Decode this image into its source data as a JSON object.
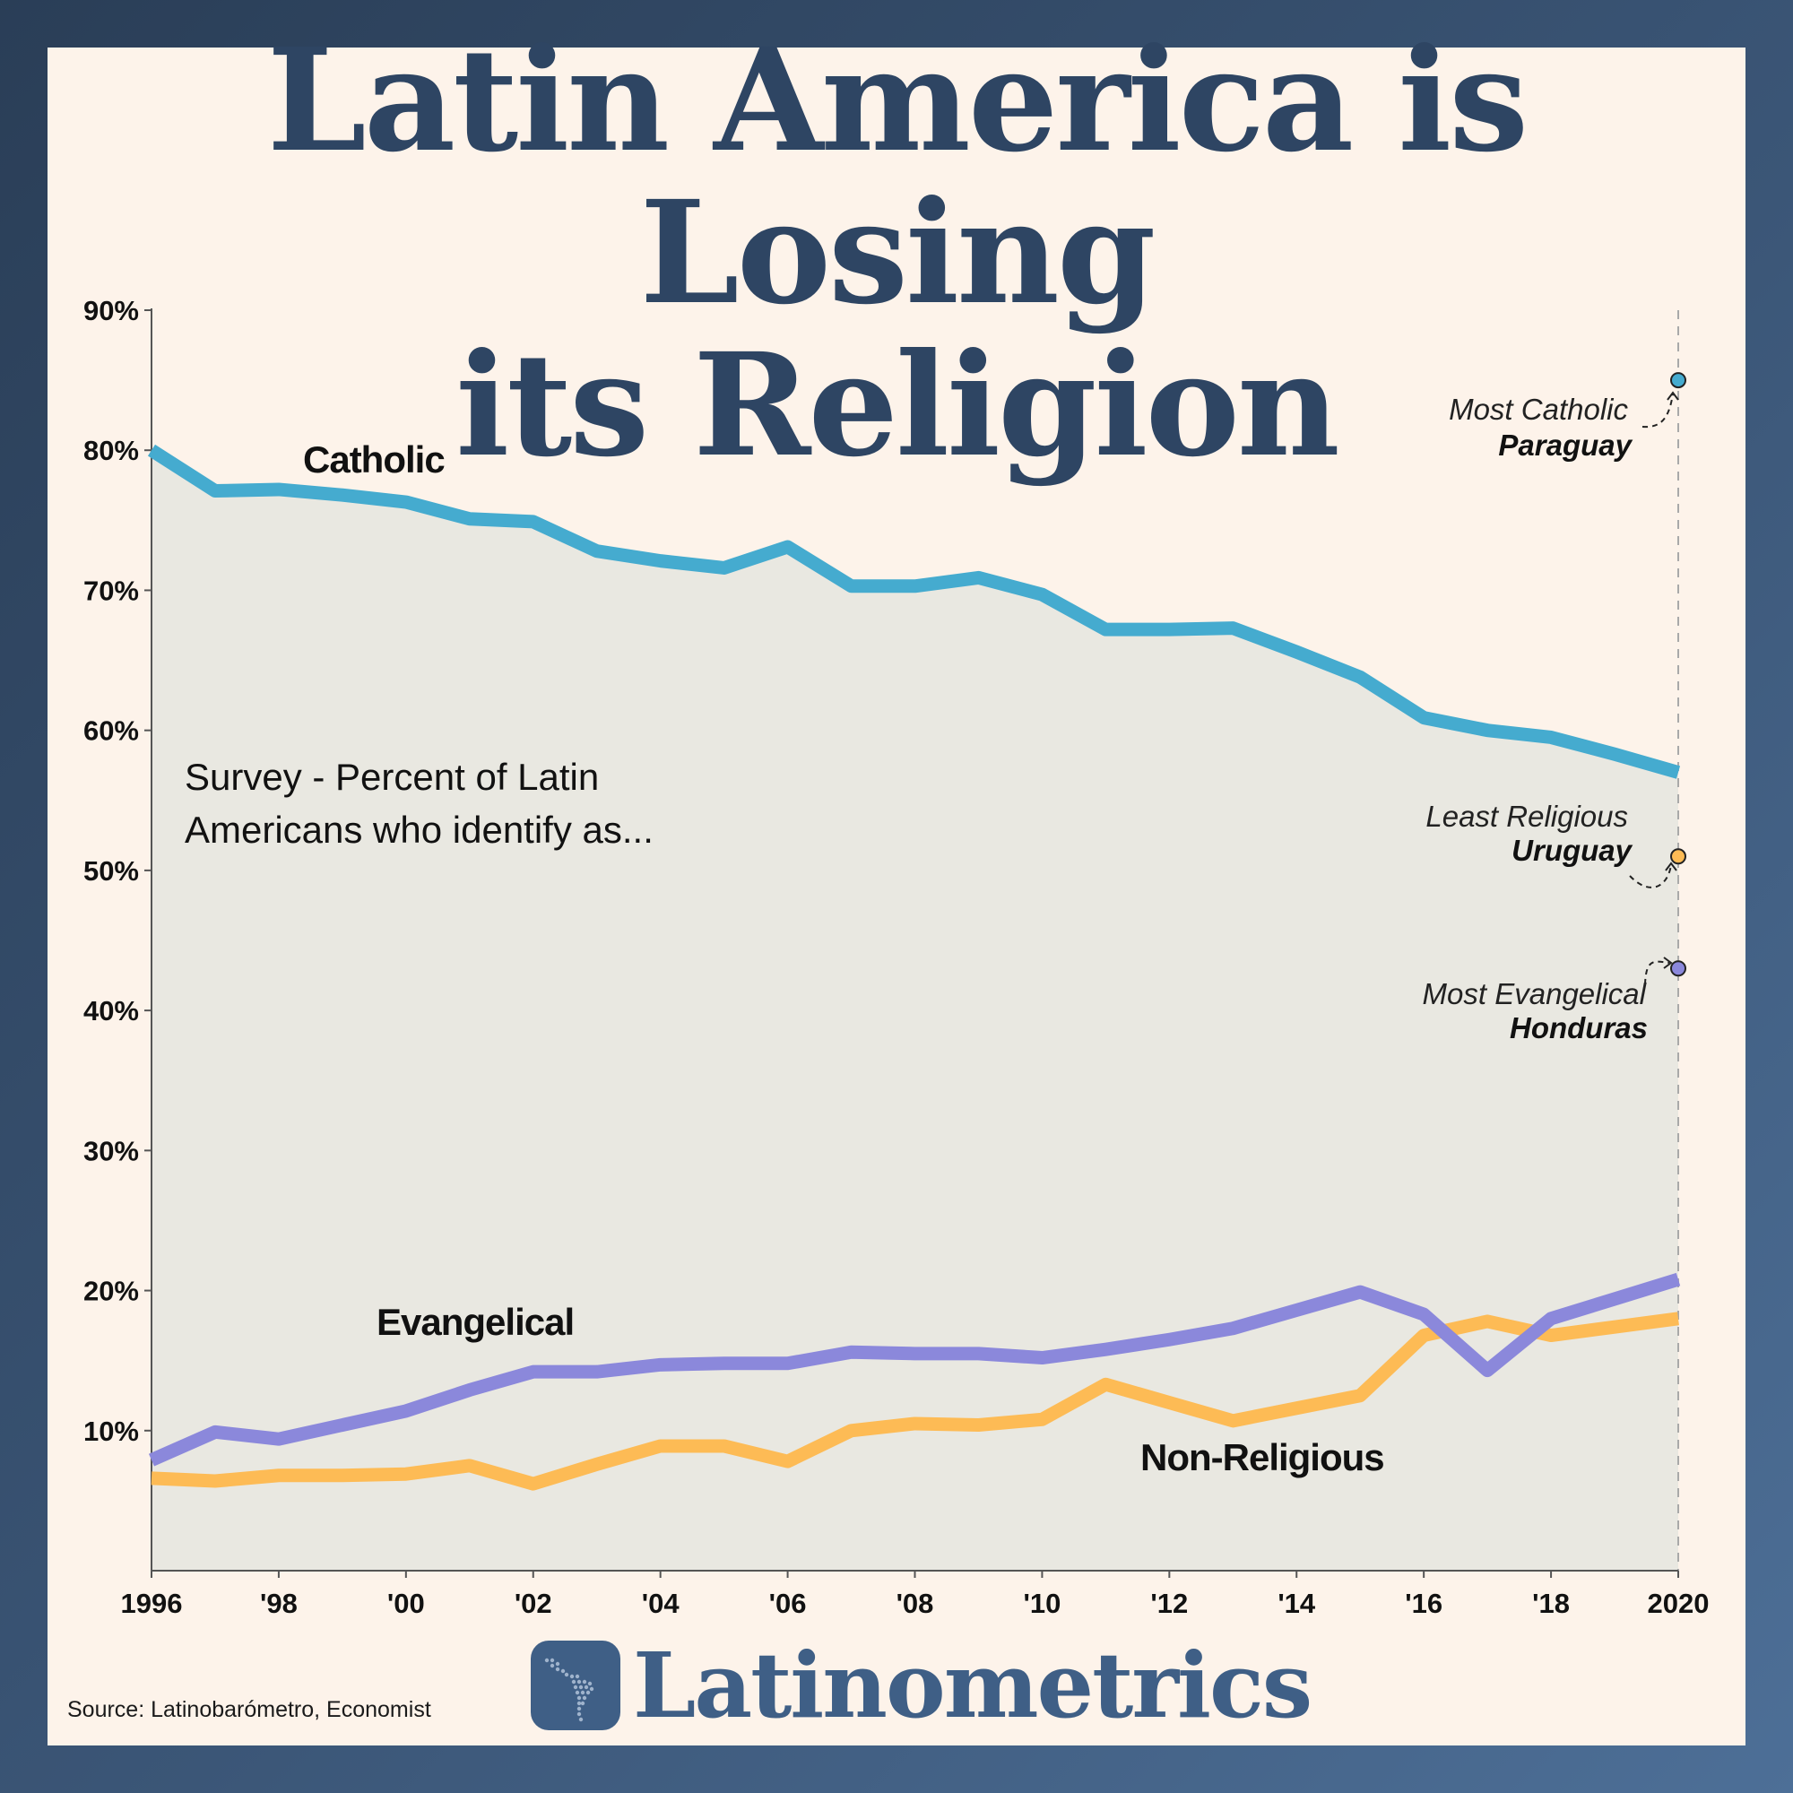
{
  "title": {
    "line1": "Latin America is Losing",
    "line2": "its Religion"
  },
  "subtitle": {
    "line1": "Survey - Percent of Latin",
    "line2": "Americans who identify as..."
  },
  "source": "Source: Latinobarómetro, Economist",
  "brand": {
    "name": "Latinometrics",
    "logo_icon": "latin-america-map-icon"
  },
  "colors": {
    "catholic": "#45abcf",
    "evangelical": "#8b88db",
    "non_religious": "#fdbb55",
    "area_fill": "#e9e8e1",
    "title": "#2e4563",
    "brand": "#3f5f86"
  },
  "chart_data": {
    "type": "line",
    "x": [
      1996,
      1997,
      1998,
      1999,
      2000,
      2001,
      2002,
      2003,
      2004,
      2005,
      2006,
      2007,
      2008,
      2009,
      2010,
      2011,
      2012,
      2013,
      2014,
      2015,
      2016,
      2017,
      2018,
      2019,
      2020
    ],
    "x_tick_values": [
      1996,
      1998,
      2000,
      2002,
      2004,
      2006,
      2008,
      2010,
      2012,
      2014,
      2016,
      2018,
      2020
    ],
    "x_tick_labels": [
      "1996",
      "'98",
      "'00",
      "'02",
      "'04",
      "'06",
      "'08",
      "'10",
      "'12",
      "'14",
      "'16",
      "'18",
      "2020"
    ],
    "y_ticks": [
      10,
      20,
      30,
      40,
      50,
      60,
      70,
      80,
      90
    ],
    "y_tick_labels": [
      "10%",
      "20%",
      "30%",
      "40%",
      "50%",
      "60%",
      "70%",
      "80%",
      "90%"
    ],
    "xlim": [
      1996,
      2020
    ],
    "ylim": [
      0,
      90
    ],
    "grid": false,
    "series": [
      {
        "name": "Catholic",
        "key": "catholic",
        "filled": true,
        "values": [
          80,
          77.1,
          77.2,
          76.8,
          76.3,
          75.1,
          74.9,
          72.8,
          72.1,
          71.6,
          73.1,
          70.3,
          70.3,
          70.9,
          69.7,
          67.2,
          67.2,
          67.3,
          65.6,
          63.8,
          60.9,
          60,
          59.5,
          58.3,
          57
        ]
      },
      {
        "name": "Evangelical",
        "key": "evangelical",
        "filled": false,
        "values": [
          7.9,
          9.9,
          9.4,
          10.4,
          11.4,
          12.9,
          14.2,
          14.2,
          14.7,
          14.8,
          14.8,
          15.6,
          15.5,
          15.5,
          15.2,
          15.8,
          16.5,
          17.3,
          18.6,
          19.9,
          18.3,
          14.3,
          18,
          19.4,
          20.8
        ]
      },
      {
        "name": "Non-Religious",
        "key": "non_religious",
        "filled": false,
        "values": [
          6.6,
          6.4,
          6.8,
          6.8,
          6.9,
          7.5,
          6.2,
          7.6,
          8.9,
          8.9,
          7.8,
          10,
          10.5,
          10.4,
          10.8,
          13.3,
          12,
          10.7,
          11.6,
          12.5,
          16.8,
          17.8,
          16.8,
          17.4,
          18
        ]
      }
    ],
    "series_labels": [
      {
        "key": "catholic",
        "text": "Catholic"
      },
      {
        "key": "evangelical",
        "text": "Evangelical"
      },
      {
        "key": "non_religious",
        "text": "Non-Religious"
      }
    ],
    "annotations": [
      {
        "key": "catholic",
        "x": 2020,
        "y": 85,
        "caption": "Most Catholic",
        "country": "Paraguay"
      },
      {
        "key": "non_religious",
        "x": 2020,
        "y": 51,
        "caption": "Least Religious",
        "country": "Uruguay"
      },
      {
        "key": "evangelical",
        "x": 2020,
        "y": 43,
        "caption": "Most Evangelical",
        "country": "Honduras"
      }
    ],
    "reference_line": {
      "x": 2020,
      "style": "dashed"
    }
  }
}
